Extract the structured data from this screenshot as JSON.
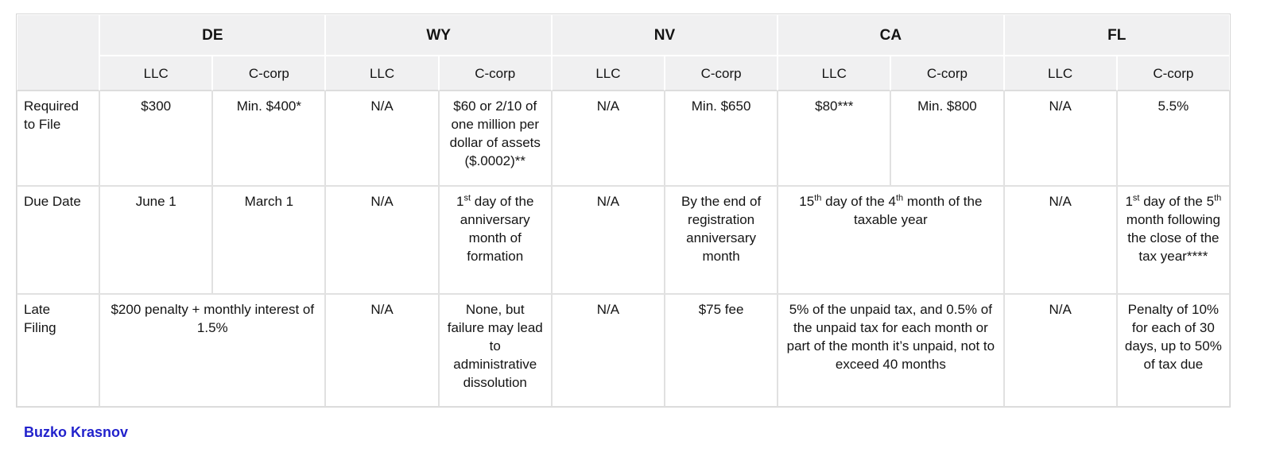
{
  "table": {
    "corner_label": "",
    "states": [
      {
        "code": "DE",
        "entities": [
          "LLC",
          "C-corp"
        ]
      },
      {
        "code": "WY",
        "entities": [
          "LLC",
          "C-corp"
        ]
      },
      {
        "code": "NV",
        "entities": [
          "LLC",
          "C-corp"
        ]
      },
      {
        "code": "CA",
        "entities": [
          "LLC",
          "C-corp"
        ]
      },
      {
        "code": "FL",
        "entities": [
          "LLC",
          "C-corp"
        ]
      }
    ],
    "rows": [
      {
        "label": "Required to File",
        "cells": [
          {
            "text": "$300",
            "span": 1
          },
          {
            "text": "Min. $400*",
            "span": 1
          },
          {
            "text": "N/A",
            "span": 1
          },
          {
            "text": "$60 or 2/10 of one million per dollar of assets ($.0002)**",
            "span": 1
          },
          {
            "text": "N/A",
            "span": 1
          },
          {
            "text": "Min. $650",
            "span": 1
          },
          {
            "text": "$80***",
            "span": 1
          },
          {
            "text": "Min. $800",
            "span": 1
          },
          {
            "text": "N/A",
            "span": 1
          },
          {
            "text": "5.5%",
            "span": 1
          }
        ]
      },
      {
        "label": "Due Date",
        "cells": [
          {
            "text": "June 1",
            "span": 1
          },
          {
            "text": "March 1",
            "span": 1
          },
          {
            "text": "N/A",
            "span": 1
          },
          {
            "text": "1st day of the anniversary month of formation",
            "span": 1
          },
          {
            "text": "N/A",
            "span": 1
          },
          {
            "text": "By the end of registration anniversary month",
            "span": 1
          },
          {
            "text": "15th day of the 4th month of the taxable year",
            "span": 2
          },
          {
            "text": "N/A",
            "span": 1
          },
          {
            "text": "1st day of the 5th month following the close of the tax year****",
            "span": 1
          }
        ]
      },
      {
        "label": "Late Filing",
        "cells": [
          {
            "text": "$200 penalty + monthly interest of 1.5%",
            "span": 2
          },
          {
            "text": "N/A",
            "span": 1
          },
          {
            "text": "None, but failure may lead to administrative dissolution",
            "span": 1
          },
          {
            "text": "N/A",
            "span": 1
          },
          {
            "text": "$75 fee",
            "span": 1
          },
          {
            "text": "5% of the unpaid tax, and 0.5% of the unpaid tax for each month or part of the month it’s unpaid, not to exceed 40 months",
            "span": 2
          },
          {
            "text": "N/A",
            "span": 1
          },
          {
            "text": "Penalty of 10% for each of 30 days, up to 50% of tax due",
            "span": 1
          }
        ]
      }
    ]
  },
  "footer": {
    "link_label": "Buzko Krasnov",
    "link_color": "#2222cc"
  },
  "colors": {
    "header_background": "#f0f0f1",
    "grid_line": "#e1e1e1",
    "outer_border": "#d6d6d6",
    "text": "#141414"
  }
}
